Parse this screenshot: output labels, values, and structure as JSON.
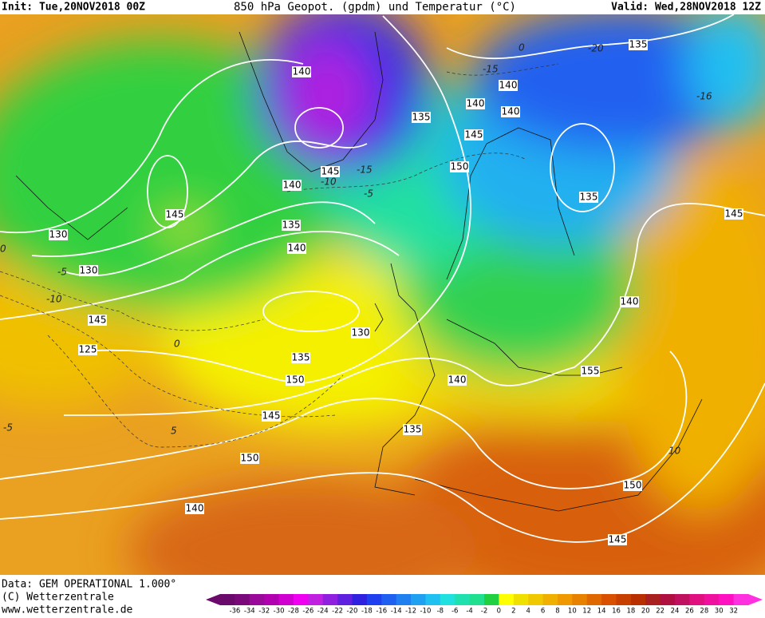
{
  "header": {
    "init": "Init: Tue,20NOV2018 00Z",
    "title": "850 hPa Geopot. (gpdm) und Temperatur (°C)",
    "valid": "Valid: Wed,28NOV2018 12Z"
  },
  "footer": {
    "data": "Data: GEM OPERATIONAL 1.000°",
    "copyright": "(C) Wetterzentrale",
    "url": "www.wetterzentrale.de"
  },
  "colorbar": {
    "ticks": [
      -36,
      -34,
      -32,
      -30,
      -28,
      -26,
      -24,
      -22,
      -20,
      -18,
      -16,
      -14,
      -12,
      -10,
      -8,
      -6,
      -4,
      -2,
      0,
      2,
      4,
      6,
      8,
      10,
      12,
      14,
      16,
      18,
      20,
      22,
      24,
      26,
      28,
      30,
      32
    ],
    "colors": [
      "#6a0a6a",
      "#7a0a7a",
      "#9a0a9a",
      "#b000b0",
      "#d000d0",
      "#f000f0",
      "#c020e0",
      "#9020e0",
      "#6020e0",
      "#3020e0",
      "#2040f0",
      "#2060f0",
      "#2080f0",
      "#20a0f0",
      "#20c0f0",
      "#20e0e0",
      "#20e0b0",
      "#20e090",
      "#20d040",
      "#ffff00",
      "#f0e000",
      "#f0c800",
      "#f0b000",
      "#f09800",
      "#e88000",
      "#e06800",
      "#d85000",
      "#c84000",
      "#b83000",
      "#a82020",
      "#b01040",
      "#c01060",
      "#e01080",
      "#f010a0",
      "#ff10c0",
      "#ff30e0"
    ]
  },
  "geopotential_labels": [
    "140",
    "135",
    "140",
    "140",
    "135",
    "145",
    "145",
    "150",
    "140",
    "145",
    "135",
    "130",
    "135",
    "130",
    "140",
    "145",
    "125",
    "130",
    "135",
    "150",
    "140",
    "145",
    "155",
    "150",
    "135",
    "140",
    "140",
    "145",
    "150",
    "145",
    "140"
  ],
  "isotherm_labels": [
    "-20",
    "-15",
    "-16",
    "-15",
    "-10",
    "-5",
    "0",
    "-5",
    "-10",
    "0",
    "5",
    "-5",
    "10",
    "0"
  ]
}
